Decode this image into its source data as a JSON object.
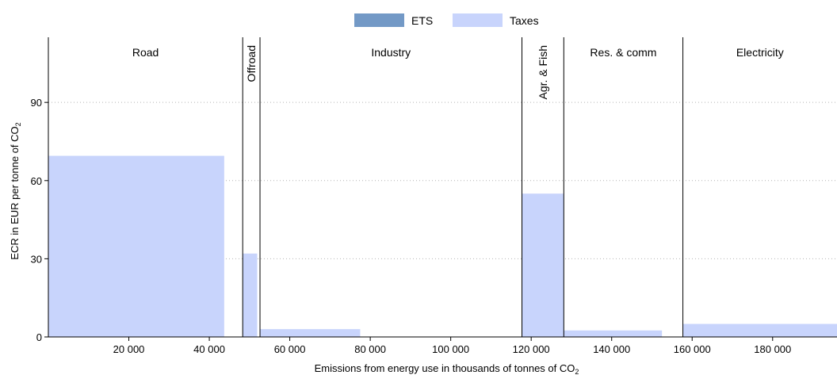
{
  "chart_data": {
    "type": "bar",
    "variant": "variable-width bars (marimekko style), one block per fuel/sector segment",
    "legend": [
      {
        "name": "ETS",
        "color": "#7399c6"
      },
      {
        "name": "Taxes",
        "color": "#c8d4fc"
      }
    ],
    "legend_position": "top-center",
    "xlabel": "Emissions from energy use in thousands of tonnes of CO",
    "xlabel_sub": "2",
    "ylabel": "ECR in EUR per tonne of CO",
    "ylabel_sub": "2",
    "xlim": [
      0,
      196000
    ],
    "ylim": [
      0,
      115
    ],
    "x_ticks": [
      20000,
      40000,
      60000,
      80000,
      100000,
      120000,
      140000,
      160000,
      180000
    ],
    "x_tick_labels": [
      "20 000",
      "40 000",
      "60 000",
      "80 000",
      "100 000",
      "120 000",
      "140 000",
      "160 000",
      "180 000"
    ],
    "y_ticks": [
      0,
      30,
      60,
      90
    ],
    "y_tick_labels": [
      "0",
      "30",
      "60",
      "90"
    ],
    "grid": "horizontal dotted at y ticks",
    "sectors": [
      {
        "name": "Road",
        "x_start": 0,
        "x_end": 48300,
        "label_orientation": "horizontal"
      },
      {
        "name": "Offroad",
        "x_start": 48300,
        "x_end": 52600,
        "label_orientation": "vertical"
      },
      {
        "name": "Industry",
        "x_start": 52600,
        "x_end": 117700,
        "label_orientation": "horizontal"
      },
      {
        "name": "Agr. & Fish",
        "x_start": 117700,
        "x_end": 128100,
        "label_orientation": "vertical"
      },
      {
        "name": "Res. & comm",
        "x_start": 128100,
        "x_end": 157700,
        "label_orientation": "horizontal"
      },
      {
        "name": "Electricity",
        "x_start": 157700,
        "x_end": 196000,
        "label_orientation": "horizontal"
      }
    ],
    "series": [
      {
        "name": "Taxes",
        "bars": [
          {
            "x_start": 0,
            "x_end": 43700,
            "value": 69.5
          },
          {
            "x_start": 48300,
            "x_end": 51900,
            "value": 32
          },
          {
            "x_start": 52600,
            "x_end": 77500,
            "value": 3
          },
          {
            "x_start": 117700,
            "x_end": 128100,
            "value": 55
          },
          {
            "x_start": 128100,
            "x_end": 152500,
            "value": 2.5
          },
          {
            "x_start": 157700,
            "x_end": 196000,
            "value": 5
          }
        ]
      },
      {
        "name": "ETS",
        "bars": []
      }
    ]
  }
}
